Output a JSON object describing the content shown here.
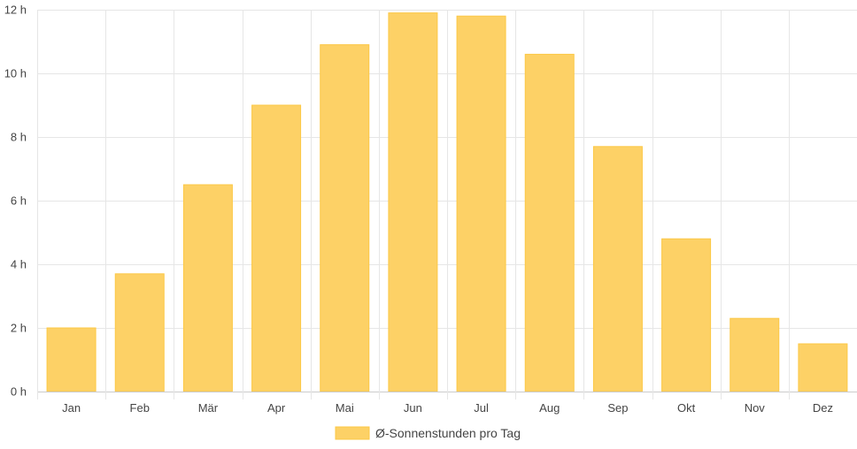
{
  "chart_data": {
    "type": "bar",
    "categories": [
      "Jan",
      "Feb",
      "Mär",
      "Apr",
      "Mai",
      "Jun",
      "Jul",
      "Aug",
      "Sep",
      "Okt",
      "Nov",
      "Dez"
    ],
    "series": [
      {
        "name": "Ø-Sonnenstunden pro Tag",
        "values": [
          2.0,
          3.7,
          6.5,
          9.0,
          10.9,
          11.9,
          11.8,
          10.6,
          7.7,
          4.8,
          2.3,
          1.5
        ]
      }
    ],
    "ylim": [
      0,
      12
    ],
    "yticks": [
      0,
      2,
      4,
      6,
      8,
      10,
      12
    ],
    "y_tick_labels": [
      "0 h",
      "2 h",
      "4 h",
      "6 h",
      "8 h",
      "10 h",
      "12 h"
    ],
    "grid": true,
    "legend_position": "bottom-center",
    "colors": {
      "bar_fill": "#fdd166",
      "bar_stroke": "#fcc846",
      "grid": "#e6e6e6",
      "axis": "#cccccc",
      "text": "#444444"
    }
  }
}
